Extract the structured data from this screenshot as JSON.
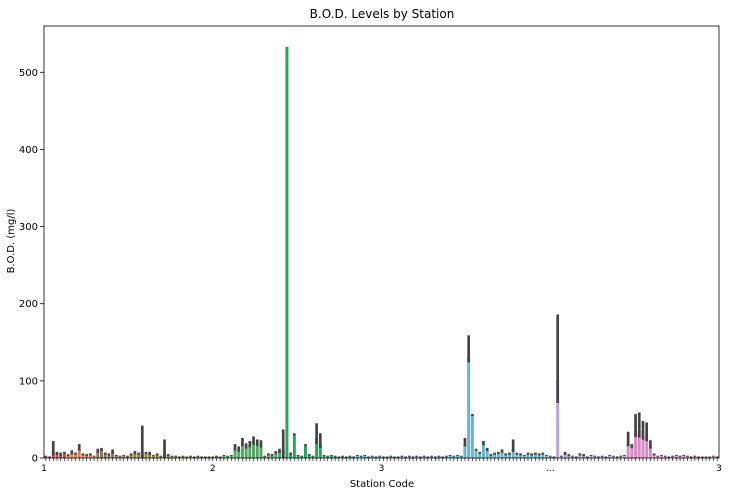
{
  "chart_data": {
    "type": "bar",
    "title": "B.O.D. Levels by Station",
    "xlabel": "Station Code",
    "ylabel": "B.O.D. (mg/l)",
    "ylim": [
      0,
      560
    ],
    "yticks": [
      0,
      100,
      200,
      300,
      400,
      500
    ],
    "grid": false,
    "legend": "none",
    "tick_labels_note": "x tick labels are overlapping and illegible",
    "x_tick_labels": [
      "1",
      "2",
      "3",
      "…",
      "3"
    ],
    "palette_colors": [
      "#c44e52",
      "#dd8452",
      "#937860",
      "#8c8c3a",
      "#55a868",
      "#2ca25f",
      "#4bb4c8",
      "#64b5cd",
      "#b5a3e0",
      "#da8bc3"
    ],
    "series": [
      {
        "name": "",
        "bars": [
          {
            "v": 2,
            "err": 1,
            "c": "#c44e52"
          },
          {
            "v": 1,
            "err": 1,
            "c": "#c44e52"
          },
          {
            "v": 8,
            "err": 14,
            "c": "#c44e52"
          },
          {
            "v": 5,
            "err": 3,
            "c": "#c44e52"
          },
          {
            "v": 4,
            "err": 3,
            "c": "#c44e52"
          },
          {
            "v": 6,
            "err": 2,
            "c": "#c44e52"
          },
          {
            "v": 3,
            "err": 2,
            "c": "#dd8452"
          },
          {
            "v": 6,
            "err": 4,
            "c": "#dd8452"
          },
          {
            "v": 5,
            "err": 2,
            "c": "#dd8452"
          },
          {
            "v": 12,
            "err": 6,
            "c": "#dd8452"
          },
          {
            "v": 4,
            "err": 2,
            "c": "#dd8452"
          },
          {
            "v": 3,
            "err": 2,
            "c": "#dd8452"
          },
          {
            "v": 4,
            "err": 2,
            "c": "#dd8452"
          },
          {
            "v": 2,
            "err": 1,
            "c": "#dd8452"
          },
          {
            "v": 8,
            "err": 4,
            "c": "#937860"
          },
          {
            "v": 10,
            "err": 3,
            "c": "#937860"
          },
          {
            "v": 5,
            "err": 2,
            "c": "#937860"
          },
          {
            "v": 4,
            "err": 2,
            "c": "#937860"
          },
          {
            "v": 7,
            "err": 4,
            "c": "#937860"
          },
          {
            "v": 3,
            "err": 1,
            "c": "#937860"
          },
          {
            "v": 2,
            "err": 1,
            "c": "#937860"
          },
          {
            "v": 3,
            "err": 1,
            "c": "#937860"
          },
          {
            "v": 2,
            "err": 1,
            "c": "#937860"
          },
          {
            "v": 4,
            "err": 2,
            "c": "#937860"
          },
          {
            "v": 6,
            "err": 3,
            "c": "#8c8c3a"
          },
          {
            "v": 5,
            "err": 2,
            "c": "#8c8c3a"
          },
          {
            "v": 8,
            "err": 34,
            "c": "#8c8c3a"
          },
          {
            "v": 6,
            "err": 2,
            "c": "#8c8c3a"
          },
          {
            "v": 5,
            "err": 3,
            "c": "#8c8c3a"
          },
          {
            "v": 3,
            "err": 1,
            "c": "#8c8c3a"
          },
          {
            "v": 4,
            "err": 2,
            "c": "#8c8c3a"
          },
          {
            "v": 2,
            "err": 1,
            "c": "#8c8c3a"
          },
          {
            "v": 6,
            "err": 18,
            "c": "#8c8c3a"
          },
          {
            "v": 3,
            "err": 2,
            "c": "#8c8c3a"
          },
          {
            "v": 2,
            "err": 1,
            "c": "#8c8c3a"
          },
          {
            "v": 2,
            "err": 1,
            "c": "#8c8c3a"
          },
          {
            "v": 1,
            "err": 1,
            "c": "#8c8c3a"
          },
          {
            "v": 2,
            "err": 1,
            "c": "#8c8c3a"
          },
          {
            "v": 1,
            "err": 1,
            "c": "#8c8c3a"
          },
          {
            "v": 2,
            "err": 1,
            "c": "#8c8c3a"
          },
          {
            "v": 1,
            "err": 1,
            "c": "#8c8c3a"
          },
          {
            "v": 2,
            "err": 1,
            "c": "#8c8c3a"
          },
          {
            "v": 1,
            "err": 1,
            "c": "#8c8c3a"
          },
          {
            "v": 1,
            "err": 1,
            "c": "#8c8c3a"
          },
          {
            "v": 1,
            "err": 1,
            "c": "#8c8c3a"
          },
          {
            "v": 1,
            "err": 1,
            "c": "#8c8c3a"
          },
          {
            "v": 2,
            "err": 1,
            "c": "#8c8c3a"
          },
          {
            "v": 1,
            "err": 1,
            "c": "#8c8c3a"
          },
          {
            "v": 3,
            "err": 1,
            "c": "#55a868"
          },
          {
            "v": 2,
            "err": 1,
            "c": "#55a868"
          },
          {
            "v": 3,
            "err": 1,
            "c": "#55a868"
          },
          {
            "v": 12,
            "err": 6,
            "c": "#55a868"
          },
          {
            "v": 10,
            "err": 5,
            "c": "#55a868"
          },
          {
            "v": 18,
            "err": 8,
            "c": "#55a868"
          },
          {
            "v": 14,
            "err": 5,
            "c": "#55a868"
          },
          {
            "v": 16,
            "err": 6,
            "c": "#55a868"
          },
          {
            "v": 20,
            "err": 8,
            "c": "#55a868"
          },
          {
            "v": 18,
            "err": 6,
            "c": "#55a868"
          },
          {
            "v": 16,
            "err": 7,
            "c": "#55a868"
          },
          {
            "v": 2,
            "err": 1,
            "c": "#55a868"
          },
          {
            "v": 4,
            "err": 2,
            "c": "#55a868"
          },
          {
            "v": 3,
            "err": 2,
            "c": "#55a868"
          },
          {
            "v": 6,
            "err": 3,
            "c": "#55a868"
          },
          {
            "v": 8,
            "err": 4,
            "c": "#55a868"
          },
          {
            "v": 10,
            "err": 27,
            "c": "#55a868"
          },
          {
            "v": 533,
            "err": 0,
            "c": "#2ca25f"
          },
          {
            "v": 5,
            "err": 2,
            "c": "#2ca25f"
          },
          {
            "v": 30,
            "err": 2,
            "c": "#2ca25f"
          },
          {
            "v": 3,
            "err": 1,
            "c": "#2ca25f"
          },
          {
            "v": 2,
            "err": 1,
            "c": "#2ca25f"
          },
          {
            "v": 16,
            "err": 2,
            "c": "#2ca25f"
          },
          {
            "v": 3,
            "err": 2,
            "c": "#2ca25f"
          },
          {
            "v": 2,
            "err": 1,
            "c": "#2ca25f"
          },
          {
            "v": 25,
            "err": 20,
            "c": "#2ca25f"
          },
          {
            "v": 18,
            "err": 14,
            "c": "#2ca25f"
          },
          {
            "v": 3,
            "err": 1,
            "c": "#2ca25f"
          },
          {
            "v": 2,
            "err": 1,
            "c": "#2ca25f"
          },
          {
            "v": 3,
            "err": 1,
            "c": "#2ca25f"
          },
          {
            "v": 2,
            "err": 1,
            "c": "#2ca25f"
          },
          {
            "v": 1,
            "err": 1,
            "c": "#2ca25f"
          },
          {
            "v": 2,
            "err": 1,
            "c": "#2ca25f"
          },
          {
            "v": 1,
            "err": 1,
            "c": "#2ca25f"
          },
          {
            "v": 2,
            "err": 1,
            "c": "#2ca25f"
          },
          {
            "v": 1,
            "err": 1,
            "c": "#2ca25f"
          },
          {
            "v": 3,
            "err": 1,
            "c": "#4bb4c8"
          },
          {
            "v": 2,
            "err": 1,
            "c": "#4bb4c8"
          },
          {
            "v": 3,
            "err": 1,
            "c": "#4bb4c8"
          },
          {
            "v": 1,
            "err": 1,
            "c": "#4bb4c8"
          },
          {
            "v": 2,
            "err": 1,
            "c": "#4bb4c8"
          },
          {
            "v": 1,
            "err": 1,
            "c": "#4bb4c8"
          },
          {
            "v": 2,
            "err": 1,
            "c": "#4bb4c8"
          },
          {
            "v": 1,
            "err": 1,
            "c": "#4bb4c8"
          },
          {
            "v": 1,
            "err": 1,
            "c": "#4bb4c8"
          },
          {
            "v": 2,
            "err": 1,
            "c": "#4bb4c8"
          },
          {
            "v": 1,
            "err": 1,
            "c": "#4bb4c8"
          },
          {
            "v": 1,
            "err": 1,
            "c": "#4bb4c8"
          },
          {
            "v": 2,
            "err": 1,
            "c": "#4bb4c8"
          },
          {
            "v": 1,
            "err": 1,
            "c": "#4bb4c8"
          },
          {
            "v": 2,
            "err": 1,
            "c": "#4bb4c8"
          },
          {
            "v": 1,
            "err": 1,
            "c": "#4bb4c8"
          },
          {
            "v": 2,
            "err": 1,
            "c": "#4bb4c8"
          },
          {
            "v": 1,
            "err": 1,
            "c": "#4bb4c8"
          },
          {
            "v": 2,
            "err": 1,
            "c": "#4bb4c8"
          },
          {
            "v": 1,
            "err": 1,
            "c": "#4bb4c8"
          },
          {
            "v": 2,
            "err": 1,
            "c": "#4bb4c8"
          },
          {
            "v": 1,
            "err": 1,
            "c": "#4bb4c8"
          },
          {
            "v": 2,
            "err": 1,
            "c": "#4bb4c8"
          },
          {
            "v": 1,
            "err": 1,
            "c": "#4bb4c8"
          },
          {
            "v": 2,
            "err": 1,
            "c": "#4bb4c8"
          },
          {
            "v": 3,
            "err": 1,
            "c": "#4bb4c8"
          },
          {
            "v": 2,
            "err": 1,
            "c": "#4bb4c8"
          },
          {
            "v": 3,
            "err": 1,
            "c": "#4bb4c8"
          },
          {
            "v": 2,
            "err": 1,
            "c": "#4bb4c8"
          },
          {
            "v": 18,
            "err": 8,
            "c": "#64b5cd"
          },
          {
            "v": 133,
            "err": 26,
            "c": "#64b5cd"
          },
          {
            "v": 55,
            "err": 2,
            "c": "#64b5cd"
          },
          {
            "v": 10,
            "err": 2,
            "c": "#64b5cd"
          },
          {
            "v": 6,
            "err": 2,
            "c": "#64b5cd"
          },
          {
            "v": 18,
            "err": 4,
            "c": "#64b5cd"
          },
          {
            "v": 10,
            "err": 3,
            "c": "#64b5cd"
          },
          {
            "v": 3,
            "err": 2,
            "c": "#64b5cd"
          },
          {
            "v": 5,
            "err": 2,
            "c": "#64b5cd"
          },
          {
            "v": 6,
            "err": 2,
            "c": "#64b5cd"
          },
          {
            "v": 8,
            "err": 3,
            "c": "#64b5cd"
          },
          {
            "v": 4,
            "err": 2,
            "c": "#64b5cd"
          },
          {
            "v": 5,
            "err": 2,
            "c": "#64b5cd"
          },
          {
            "v": 12,
            "err": 12,
            "c": "#64b5cd"
          },
          {
            "v": 5,
            "err": 2,
            "c": "#64b5cd"
          },
          {
            "v": 4,
            "err": 2,
            "c": "#64b5cd"
          },
          {
            "v": 3,
            "err": 1,
            "c": "#64b5cd"
          },
          {
            "v": 5,
            "err": 2,
            "c": "#64b5cd"
          },
          {
            "v": 4,
            "err": 2,
            "c": "#64b5cd"
          },
          {
            "v": 5,
            "err": 2,
            "c": "#64b5cd"
          },
          {
            "v": 4,
            "err": 2,
            "c": "#64b5cd"
          },
          {
            "v": 5,
            "err": 2,
            "c": "#64b5cd"
          },
          {
            "v": 3,
            "err": 1,
            "c": "#64b5cd"
          },
          {
            "v": 2,
            "err": 1,
            "c": "#64b5cd"
          },
          {
            "v": 1,
            "err": 1,
            "c": "#64b5cd"
          },
          {
            "v": 101,
            "err": 85,
            "c": "#b5a3e0"
          },
          {
            "v": 2,
            "err": 1,
            "c": "#b5a3e0"
          },
          {
            "v": 5,
            "err": 3,
            "c": "#b5a3e0"
          },
          {
            "v": 3,
            "err": 2,
            "c": "#b5a3e0"
          },
          {
            "v": 2,
            "err": 1,
            "c": "#b5a3e0"
          },
          {
            "v": 1,
            "err": 1,
            "c": "#b5a3e0"
          },
          {
            "v": 4,
            "err": 2,
            "c": "#b5a3e0"
          },
          {
            "v": 3,
            "err": 2,
            "c": "#b5a3e0"
          },
          {
            "v": 1,
            "err": 1,
            "c": "#b5a3e0"
          },
          {
            "v": 3,
            "err": 1,
            "c": "#b5a3e0"
          },
          {
            "v": 2,
            "err": 1,
            "c": "#b5a3e0"
          },
          {
            "v": 1,
            "err": 1,
            "c": "#b5a3e0"
          },
          {
            "v": 2,
            "err": 1,
            "c": "#b5a3e0"
          },
          {
            "v": 1,
            "err": 1,
            "c": "#b5a3e0"
          },
          {
            "v": 3,
            "err": 1,
            "c": "#b5a3e0"
          },
          {
            "v": 2,
            "err": 1,
            "c": "#b5a3e0"
          },
          {
            "v": 1,
            "err": 1,
            "c": "#b5a3e0"
          },
          {
            "v": 2,
            "err": 1,
            "c": "#b5a3e0"
          },
          {
            "v": 3,
            "err": 1,
            "c": "#b5a3e0"
          },
          {
            "v": 20,
            "err": 14,
            "c": "#da8bc3"
          },
          {
            "v": 14,
            "err": 4,
            "c": "#da8bc3"
          },
          {
            "v": 35,
            "err": 22,
            "c": "#da8bc3"
          },
          {
            "v": 35,
            "err": 24,
            "c": "#da8bc3"
          },
          {
            "v": 30,
            "err": 18,
            "c": "#da8bc3"
          },
          {
            "v": 28,
            "err": 18,
            "c": "#da8bc3"
          },
          {
            "v": 15,
            "err": 8,
            "c": "#da8bc3"
          },
          {
            "v": 4,
            "err": 2,
            "c": "#da8bc3"
          },
          {
            "v": 2,
            "err": 1,
            "c": "#da8bc3"
          },
          {
            "v": 3,
            "err": 1,
            "c": "#da8bc3"
          },
          {
            "v": 2,
            "err": 1,
            "c": "#da8bc3"
          },
          {
            "v": 1,
            "err": 1,
            "c": "#da8bc3"
          },
          {
            "v": 2,
            "err": 1,
            "c": "#da8bc3"
          },
          {
            "v": 3,
            "err": 1,
            "c": "#da8bc3"
          },
          {
            "v": 2,
            "err": 1,
            "c": "#da8bc3"
          },
          {
            "v": 3,
            "err": 1,
            "c": "#da8bc3"
          },
          {
            "v": 2,
            "err": 1,
            "c": "#da8bc3"
          },
          {
            "v": 1,
            "err": 1,
            "c": "#da8bc3"
          },
          {
            "v": 2,
            "err": 1,
            "c": "#da8bc3"
          },
          {
            "v": 1,
            "err": 1,
            "c": "#da8bc3"
          },
          {
            "v": 1,
            "err": 1,
            "c": "#da8bc3"
          },
          {
            "v": 1,
            "err": 1,
            "c": "#da8bc3"
          },
          {
            "v": 1,
            "err": 1,
            "c": "#da8bc3"
          },
          {
            "v": 2,
            "err": 1,
            "c": "#da8bc3"
          },
          {
            "v": 1,
            "err": 1,
            "c": "#da8bc3"
          }
        ]
      }
    ]
  }
}
